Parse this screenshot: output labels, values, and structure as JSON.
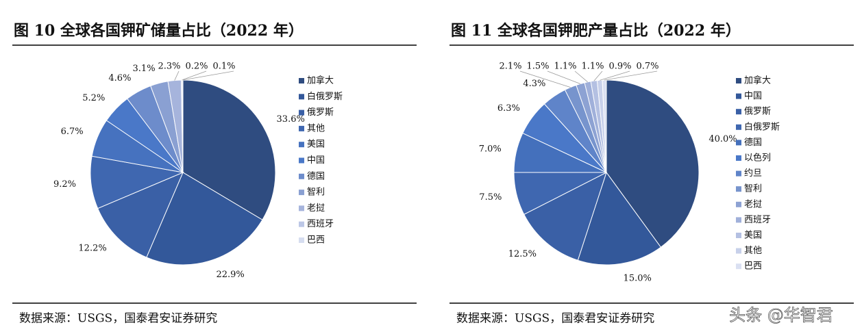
{
  "chart_data": [
    {
      "type": "pie",
      "title": "图 10 全球各国钾矿储量占比（2022 年）",
      "categories": [
        "加拿大",
        "白俄罗斯",
        "俄罗斯",
        "其他",
        "美国",
        "中国",
        "德国",
        "智利",
        "老挝",
        "西班牙",
        "巴西"
      ],
      "values": [
        33.6,
        22.9,
        12.2,
        9.2,
        6.7,
        5.2,
        4.6,
        3.1,
        2.3,
        0.2,
        0.1
      ],
      "value_labels": [
        "33.6%",
        "22.9%",
        "12.2%",
        "9.2%",
        "6.7%",
        "5.2%",
        "4.6%",
        "3.1%",
        "2.3%",
        "0.2%",
        "0.1%"
      ],
      "colors": [
        "#2f4c80",
        "#33589a",
        "#3a60a6",
        "#3f67b0",
        "#4672bf",
        "#4a78c8",
        "#6d8ccb",
        "#8aa0d2",
        "#a6b4dc",
        "#bcc7e6",
        "#d6ddf0"
      ],
      "legend": "right",
      "source": "数据来源：USGS，国泰君安证券研究"
    },
    {
      "type": "pie",
      "title": "图 11 全球各国钾肥产量占比（2022 年）",
      "categories": [
        "加拿大",
        "中国",
        "俄罗斯",
        "白俄罗斯",
        "德国",
        "以色列",
        "约旦",
        "智利",
        "老挝",
        "西班牙",
        "美国",
        "其他",
        "巴西"
      ],
      "values": [
        40.0,
        15.0,
        12.5,
        7.5,
        7.0,
        6.3,
        4.3,
        2.1,
        1.5,
        1.1,
        1.1,
        0.9,
        0.7
      ],
      "value_labels": [
        "40.0%",
        "15.0%",
        "12.5%",
        "7.5%",
        "7.0%",
        "6.3%",
        "4.3%",
        "2.1%",
        "1.5%",
        "1.1%",
        "1.1%",
        "0.9%",
        "0.7%"
      ],
      "colors": [
        "#2f4c80",
        "#33589a",
        "#3a60a6",
        "#3f67b0",
        "#4470bc",
        "#4a78c8",
        "#5f84c9",
        "#7794cd",
        "#8da2d3",
        "#a0b0da",
        "#b4c0e2",
        "#c7d0ea",
        "#dae0f2"
      ],
      "legend": "right",
      "source": "数据来源：USGS，国泰君安证券研究"
    }
  ],
  "watermark": "头条 @华智君"
}
